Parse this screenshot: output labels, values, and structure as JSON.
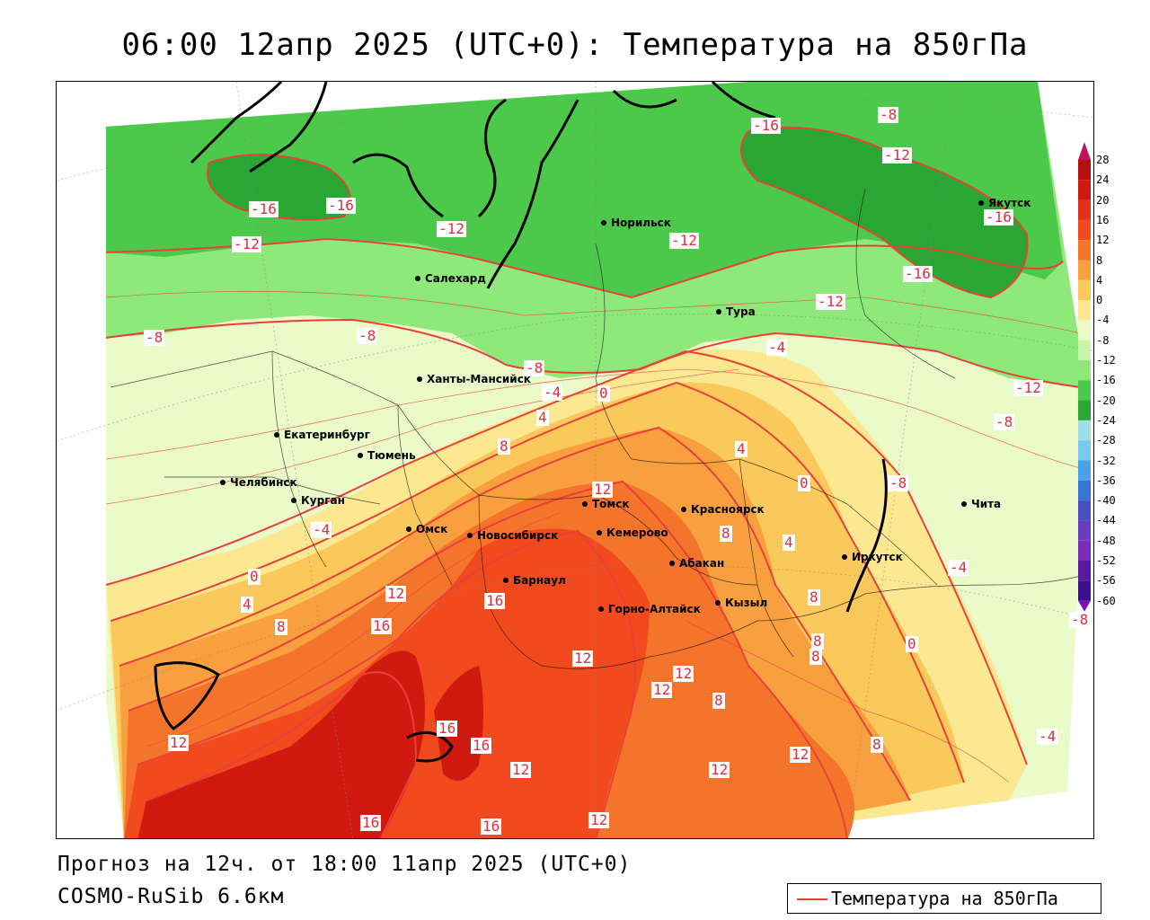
{
  "title": "06:00 12апр 2025 (UTC+0): Температура на 850гПа",
  "footer": {
    "forecast": "Прогноз на 12ч. от 18:00 11апр 2025 (UTC+0)",
    "model": "COSMO-RuSib 6.6км"
  },
  "legend": {
    "label": "Температура на 850гПа",
    "line_color": "#e8413a"
  },
  "colorbar": {
    "labels": [
      "28",
      "24",
      "20",
      "16",
      "12",
      "8",
      "4",
      "0",
      "-4",
      "-8",
      "-12",
      "-16",
      "-20",
      "-24",
      "-28",
      "-32",
      "-36",
      "-40",
      "-44",
      "-48",
      "-52",
      "-56",
      "-60"
    ],
    "colors": [
      "#c2145c",
      "#b51010",
      "#d01a10",
      "#e2301a",
      "#f04a1e",
      "#f5742c",
      "#f8a040",
      "#fbc85c",
      "#fde892",
      "#eafac8",
      "#c8f5aa",
      "#8ee87a",
      "#4cc84a",
      "#2aa634",
      "#9fe0e8",
      "#7ac8f0",
      "#4ca0e6",
      "#3a74d4",
      "#4a4ec0",
      "#6a3cc4",
      "#7a2cb4",
      "#5a1a9e",
      "#3a1088"
    ]
  },
  "cities": [
    {
      "name": "Норильск"
    },
    {
      "name": "Якутск"
    },
    {
      "name": "Салехард"
    },
    {
      "name": "Тура"
    },
    {
      "name": "Ханты-Мансийск"
    },
    {
      "name": "Екатеринбург"
    },
    {
      "name": "Тюмень"
    },
    {
      "name": "Челябинск"
    },
    {
      "name": "Курган"
    },
    {
      "name": "Омск"
    },
    {
      "name": "Томск"
    },
    {
      "name": "Новосибирск"
    },
    {
      "name": "Кемерово"
    },
    {
      "name": "Красноярск"
    },
    {
      "name": "Барнаул"
    },
    {
      "name": "Абакан"
    },
    {
      "name": "Иркутск"
    },
    {
      "name": "Чита"
    },
    {
      "name": "Горно-Алтайск"
    },
    {
      "name": "Кызыл"
    }
  ],
  "contour_labels": [
    {
      "text": "-16"
    },
    {
      "text": "-16"
    },
    {
      "text": "-12"
    },
    {
      "text": "-12"
    },
    {
      "text": "-16"
    },
    {
      "text": "-8"
    },
    {
      "text": "-12"
    },
    {
      "text": "-16"
    },
    {
      "text": "-12"
    },
    {
      "text": "-16"
    },
    {
      "text": "-12"
    },
    {
      "text": "-8"
    },
    {
      "text": "-8"
    },
    {
      "text": "-8"
    },
    {
      "text": "-4"
    },
    {
      "text": "0"
    },
    {
      "text": "-4"
    },
    {
      "text": "4"
    },
    {
      "text": "-12"
    },
    {
      "text": "-8"
    },
    {
      "text": "8"
    },
    {
      "text": "4"
    },
    {
      "text": "0"
    },
    {
      "text": "12"
    },
    {
      "text": "-8"
    },
    {
      "text": "-4"
    },
    {
      "text": "8"
    },
    {
      "text": "4"
    },
    {
      "text": "0"
    },
    {
      "text": "-4"
    },
    {
      "text": "12"
    },
    {
      "text": "4"
    },
    {
      "text": "16"
    },
    {
      "text": "8"
    },
    {
      "text": "16"
    },
    {
      "text": "8"
    },
    {
      "text": "-8"
    },
    {
      "text": "0"
    },
    {
      "text": "12"
    },
    {
      "text": "12"
    },
    {
      "text": "12"
    },
    {
      "text": "8"
    },
    {
      "text": "8"
    },
    {
      "text": "16"
    },
    {
      "text": "16"
    },
    {
      "text": "12"
    },
    {
      "text": "12"
    },
    {
      "text": "12"
    },
    {
      "text": "8"
    },
    {
      "text": "-4"
    },
    {
      "text": "16"
    },
    {
      "text": "16"
    },
    {
      "text": "12"
    },
    {
      "text": "12"
    },
    {
      "text": "8"
    }
  ]
}
